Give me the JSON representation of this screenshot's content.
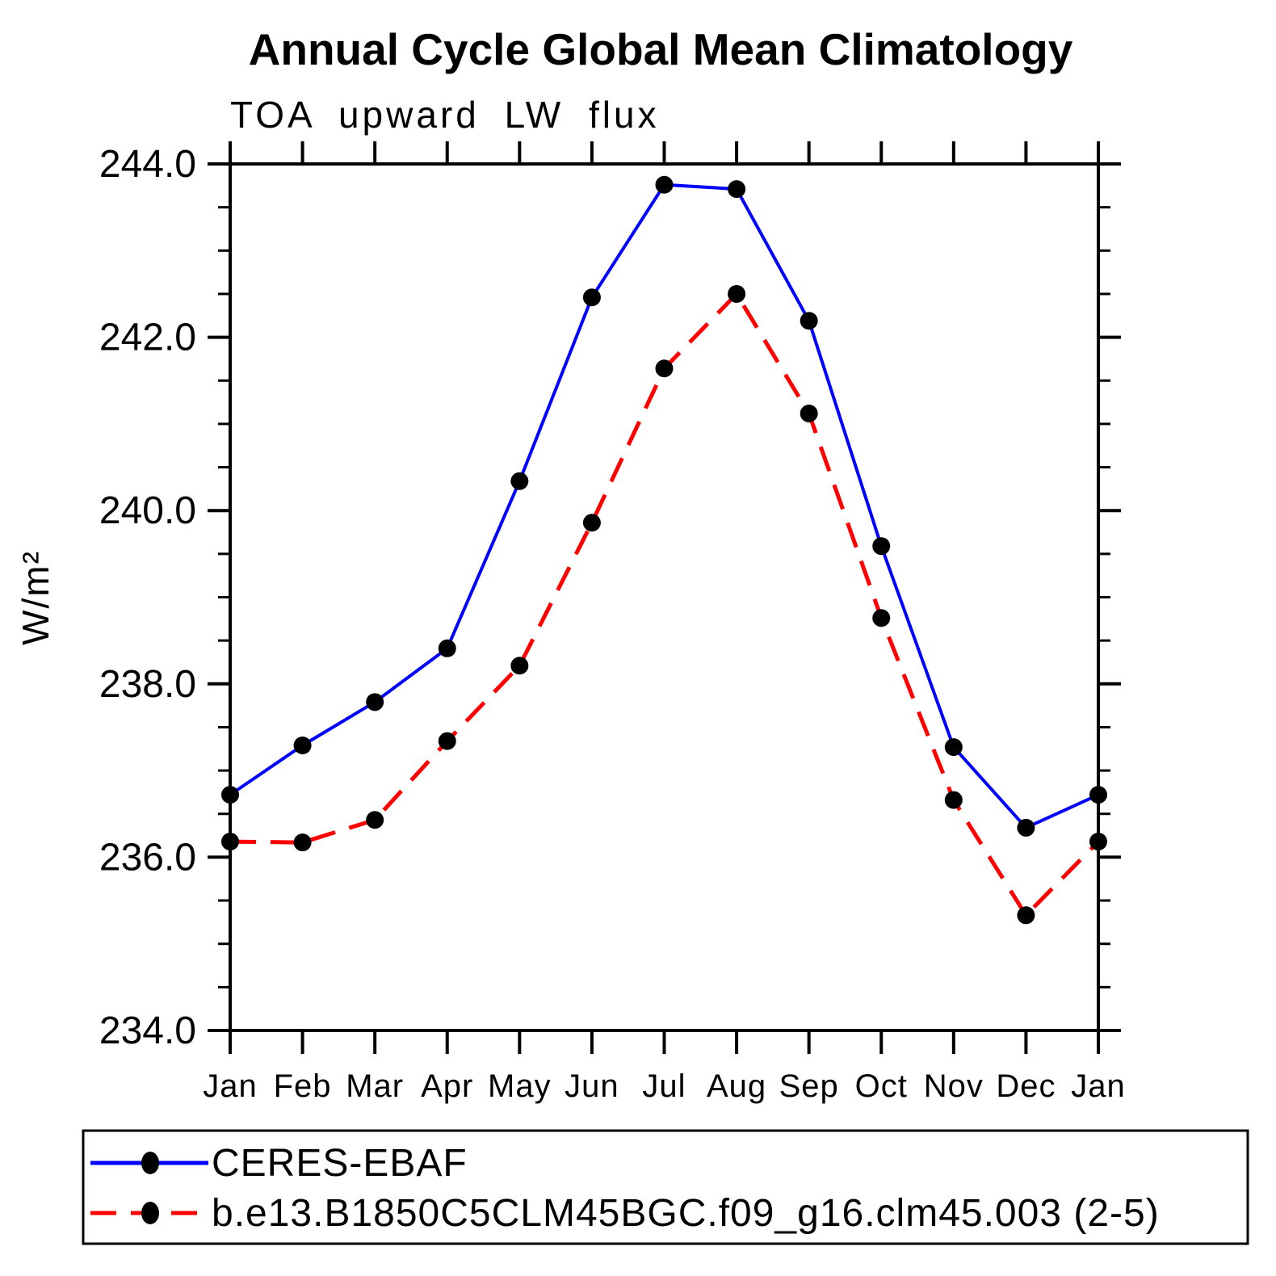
{
  "chart_data": {
    "type": "line",
    "title": "Annual Cycle Global Mean Climatology",
    "subtitle": "TOA upward LW flux",
    "ylabel": "W/m²",
    "categories": [
      "Jan",
      "Feb",
      "Mar",
      "Apr",
      "May",
      "Jun",
      "Jul",
      "Aug",
      "Sep",
      "Oct",
      "Nov",
      "Dec",
      "Jan"
    ],
    "ylim": [
      234.0,
      244.0
    ],
    "y_tick_values": [
      234.0,
      236.0,
      238.0,
      240.0,
      242.0,
      244.0
    ],
    "y_tick_labels": [
      "234.0",
      "236.0",
      "238.0",
      "240.0",
      "242.0",
      "244.0"
    ],
    "y_minor_interval": 0.5,
    "grid": false,
    "tick_style": "outward-box-frame",
    "legend_position": "bottom-left",
    "axis_color": "#000000",
    "series": [
      {
        "name": "CERES-EBAF",
        "line_color": "#0000ff",
        "line_style": "solid",
        "marker": "filled-circle",
        "marker_color": "#000000",
        "values": [
          236.72,
          237.29,
          237.79,
          238.41,
          240.34,
          242.46,
          243.76,
          243.71,
          242.19,
          239.59,
          237.27,
          236.34,
          236.72
        ]
      },
      {
        "name": "b.e13.B1850C5CLM45BGC.f09_g16.clm45.003 (2-5)",
        "line_color": "#ff0000",
        "line_style": "dashed",
        "marker": "filled-circle",
        "marker_color": "#000000",
        "values": [
          236.18,
          236.17,
          236.43,
          237.34,
          238.21,
          239.86,
          241.64,
          242.5,
          241.12,
          238.76,
          236.66,
          235.33,
          236.18
        ]
      }
    ]
  }
}
